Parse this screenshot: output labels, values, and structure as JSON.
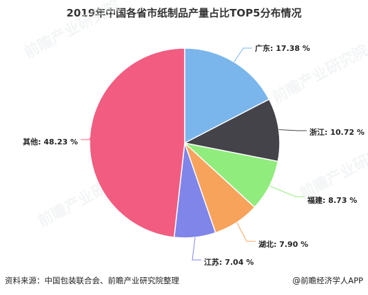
{
  "chart_data": {
    "type": "pie",
    "title": "2019年中国各省市纸制品产量占比TOP5分布情况",
    "unit": "%",
    "slices": [
      {
        "label": "广东",
        "value": 17.38,
        "color": "#7ab6eb"
      },
      {
        "label": "浙江",
        "value": 10.72,
        "color": "#434349"
      },
      {
        "label": "福建",
        "value": 8.73,
        "color": "#90ec7d"
      },
      {
        "label": "湖北",
        "value": 7.9,
        "color": "#f7a35b"
      },
      {
        "label": "江苏",
        "value": 7.04,
        "color": "#8085e9"
      },
      {
        "label": "其他",
        "value": 48.23,
        "color": "#f15c80"
      }
    ],
    "label_texts": [
      "广东: 17.38 %",
      "浙江: 10.72 %",
      "福建: 8.73 %",
      "湖北: 7.90 %",
      "江苏: 7.04 %",
      "其他: 48.23 %"
    ]
  },
  "footer": {
    "source": "资料来源：中国包装联合会、前瞻产业研究院整理",
    "brand_at": "@",
    "brand": "前瞻经济学人APP"
  },
  "watermark_text": "前瞻产业研究院"
}
